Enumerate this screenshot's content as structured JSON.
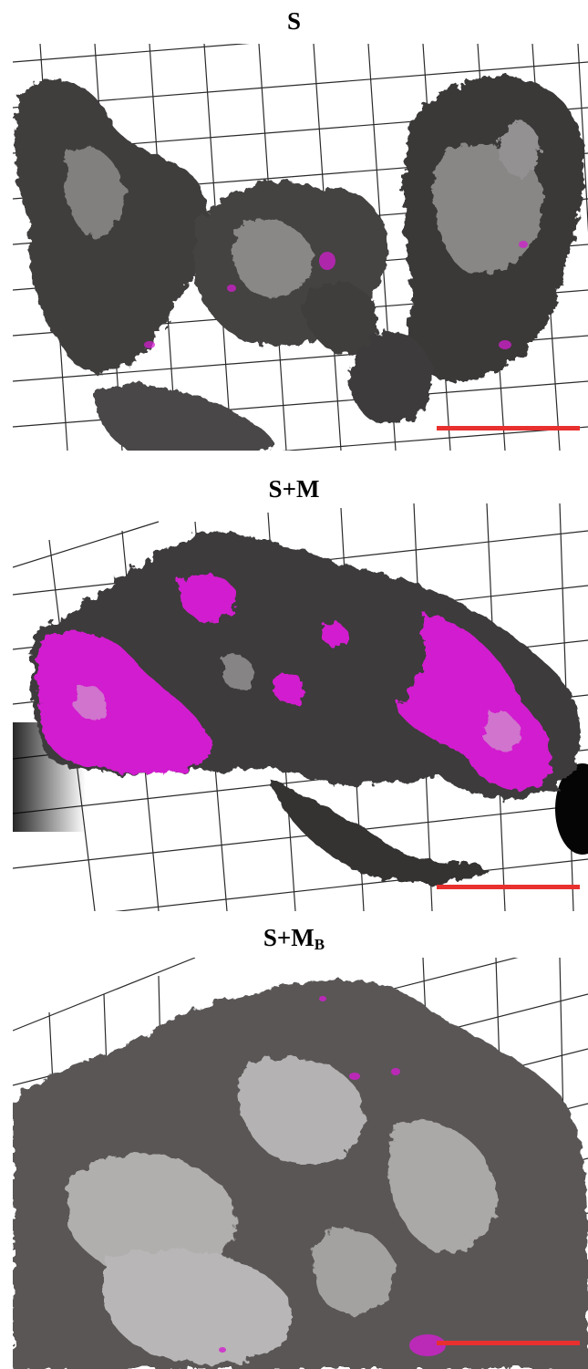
{
  "panels": [
    {
      "id": "S",
      "title": "S",
      "subscript": "",
      "fluor_level": "low",
      "coverage": "sparse"
    },
    {
      "id": "S+M",
      "title": "S+M",
      "subscript": "",
      "fluor_level": "high",
      "coverage": "medium"
    },
    {
      "id": "S+MB",
      "title": "S+M",
      "subscript": "B",
      "fluor_level": "low",
      "coverage": "dense"
    }
  ],
  "colors": {
    "background": "#ffffff",
    "grid": "#2a2a2a",
    "biomass_dark": "#3a3838",
    "biomass_mid": "#6b6868",
    "biomass_light": "#c9c6c6",
    "fluorescence": "#d21fcf",
    "scale_bar": "#e8302f"
  }
}
